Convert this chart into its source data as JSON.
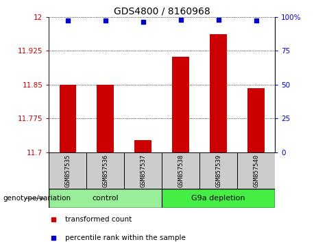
{
  "title": "GDS4800 / 8160968",
  "samples": [
    "GSM857535",
    "GSM857536",
    "GSM857537",
    "GSM857538",
    "GSM857539",
    "GSM857540"
  ],
  "bar_values": [
    11.85,
    11.85,
    11.727,
    11.912,
    11.962,
    11.843
  ],
  "percentile_values": [
    97.5,
    97.5,
    96.5,
    97.8,
    97.8,
    97.5
  ],
  "bar_color": "#cc0000",
  "dot_color": "#0000cc",
  "ylim_left": [
    11.7,
    12.0
  ],
  "ylim_right": [
    0,
    100
  ],
  "yticks_left": [
    11.7,
    11.775,
    11.85,
    11.925,
    12.0
  ],
  "ytick_labels_left": [
    "11.7",
    "11.775",
    "11.85",
    "11.925",
    "12"
  ],
  "yticks_right": [
    0,
    25,
    50,
    75,
    100
  ],
  "ytick_labels_right": [
    "0",
    "25",
    "50",
    "75",
    "100%"
  ],
  "groups": [
    {
      "label": "control",
      "n": 3,
      "color": "#99ee99"
    },
    {
      "label": "G9a depletion",
      "n": 3,
      "color": "#44ee44"
    }
  ],
  "legend_items": [
    {
      "label": "transformed count",
      "color": "#cc0000"
    },
    {
      "label": "percentile rank within the sample",
      "color": "#0000cc"
    }
  ],
  "genotype_label": "genotype/variation",
  "bar_bottom": 11.7,
  "bar_width": 0.45,
  "sample_box_color": "#cccccc",
  "plot_bg": "#ffffff"
}
